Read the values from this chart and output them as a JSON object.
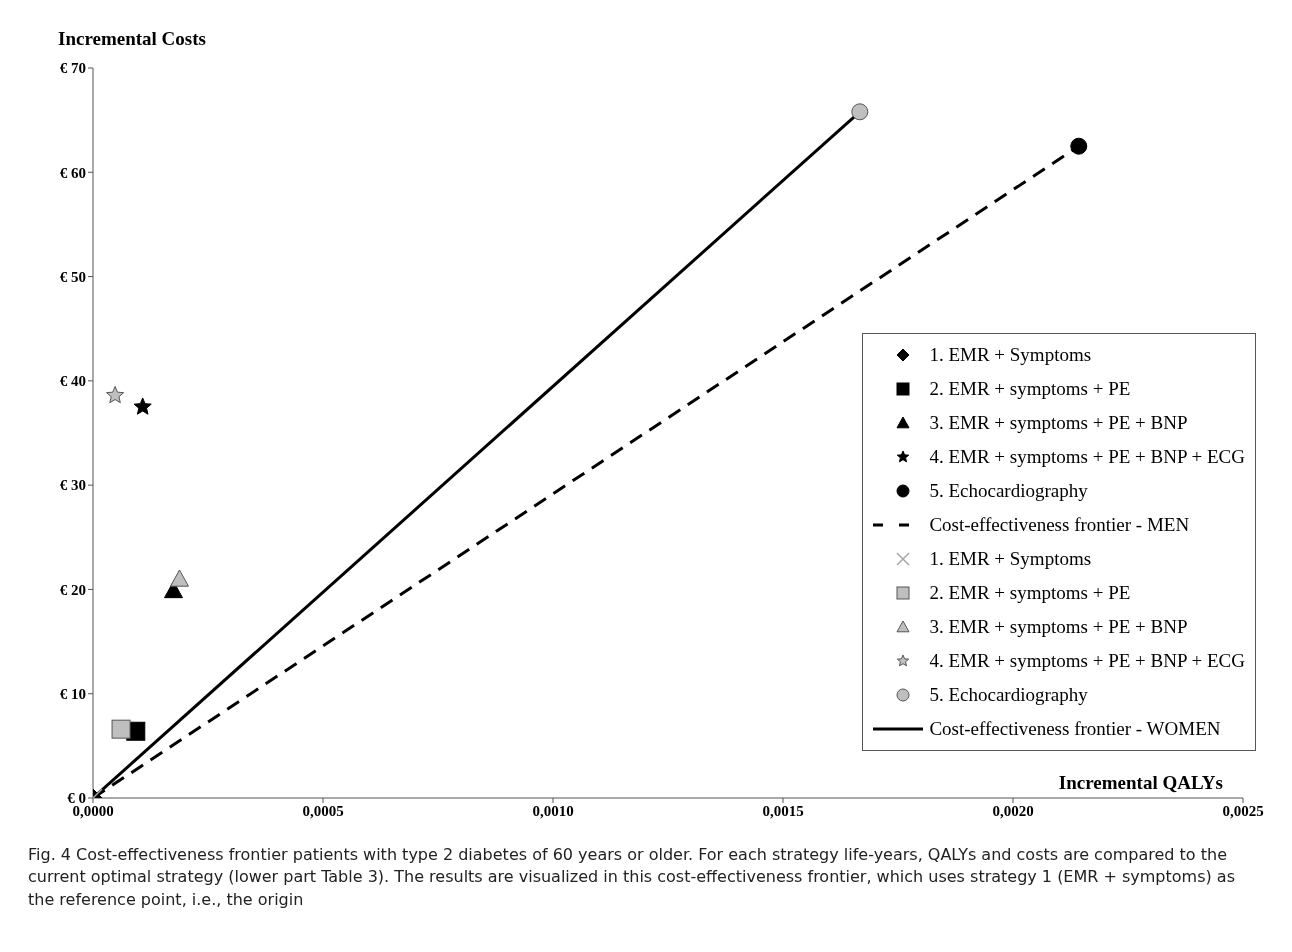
{
  "chart_data": {
    "type": "scatter",
    "xlabel": "Incremental QALYs",
    "ylabel": "Incremental Costs",
    "xlim": [
      0,
      0.0025
    ],
    "xticks": [
      {
        "value": 0,
        "label": "0,0000"
      },
      {
        "value": 0.0005,
        "label": "0,0005"
      },
      {
        "value": 0.001,
        "label": "0,0010"
      },
      {
        "value": 0.0015,
        "label": "0,0015"
      },
      {
        "value": 0.002,
        "label": "0,0020"
      },
      {
        "value": 0.0025,
        "label": "0,0025"
      }
    ],
    "ylim": [
      0,
      70
    ],
    "yticks": [
      {
        "value": 0,
        "label": "€ 0"
      },
      {
        "value": 10,
        "label": "€ 10"
      },
      {
        "value": 20,
        "label": "€ 20"
      },
      {
        "value": 30,
        "label": "€ 30"
      },
      {
        "value": 40,
        "label": "€ 40"
      },
      {
        "value": 50,
        "label": "€ 50"
      },
      {
        "value": 60,
        "label": "€ 60"
      },
      {
        "value": 70,
        "label": "€ 70"
      }
    ],
    "legend": "right",
    "series": [
      {
        "name": "1. EMR + Symptoms",
        "marker": "diamond",
        "color": "#000000",
        "x": [
          0
        ],
        "values": [
          0
        ]
      },
      {
        "name": "2. EMR + symptoms + PE",
        "marker": "square",
        "color": "#000000",
        "x": [
          9.3e-05
        ],
        "values": [
          6.4
        ]
      },
      {
        "name": "3. EMR + symptoms + PE + BNP",
        "marker": "triangle",
        "color": "#000000",
        "x": [
          0.000175
        ],
        "values": [
          19.9
        ]
      },
      {
        "name": "4. EMR + symptoms + PE + BNP + ECG",
        "marker": "star",
        "color": "#000000",
        "x": [
          0.000108
        ],
        "values": [
          37.5
        ]
      },
      {
        "name": "5. Echocardiography",
        "marker": "circle",
        "color": "#000000",
        "x": [
          0.002143
        ],
        "values": [
          62.5
        ]
      },
      {
        "name": "Cost-effectiveness frontier - MEN",
        "type": "line",
        "line_style": "dashed",
        "color": "#000000",
        "x": [
          0,
          0.002143
        ],
        "values": [
          0,
          62.5
        ]
      },
      {
        "name": "1. EMR + Symptoms",
        "marker": "cross",
        "color": "#a6a6a6",
        "x": [
          0
        ],
        "values": [
          0
        ]
      },
      {
        "name": "2. EMR + symptoms + PE",
        "marker": "square",
        "color": "#bfbfbf",
        "x": [
          6.1e-05
        ],
        "values": [
          6.6
        ]
      },
      {
        "name": "3. EMR + symptoms + PE + BNP",
        "marker": "triangle",
        "color": "#bfbfbf",
        "x": [
          0.000188
        ],
        "values": [
          21.0
        ]
      },
      {
        "name": "4. EMR + symptoms + PE + BNP + ECG",
        "marker": "star",
        "color": "#bfbfbf",
        "x": [
          4.8e-05
        ],
        "values": [
          38.6
        ]
      },
      {
        "name": "5. Echocardiography",
        "marker": "circle",
        "color": "#bfbfbf",
        "x": [
          0.001667
        ],
        "values": [
          65.8
        ]
      },
      {
        "name": "Cost-effectiveness frontier - WOMEN",
        "type": "line",
        "line_style": "solid",
        "color": "#000000",
        "x": [
          0,
          0.001667
        ],
        "values": [
          0,
          65.8
        ]
      }
    ],
    "annotations": [
      "Fig. 4  Cost-effectiveness frontier patients with type 2 diabetes of 60 years or older. For each strategy life-years, QALYs and costs are compared to the current optimal strategy (lower part Table 3). The results are visualized in this cost-effectiveness frontier, which uses strategy 1 (EMR + symptoms) as the reference point, i.e., the origin"
    ]
  }
}
